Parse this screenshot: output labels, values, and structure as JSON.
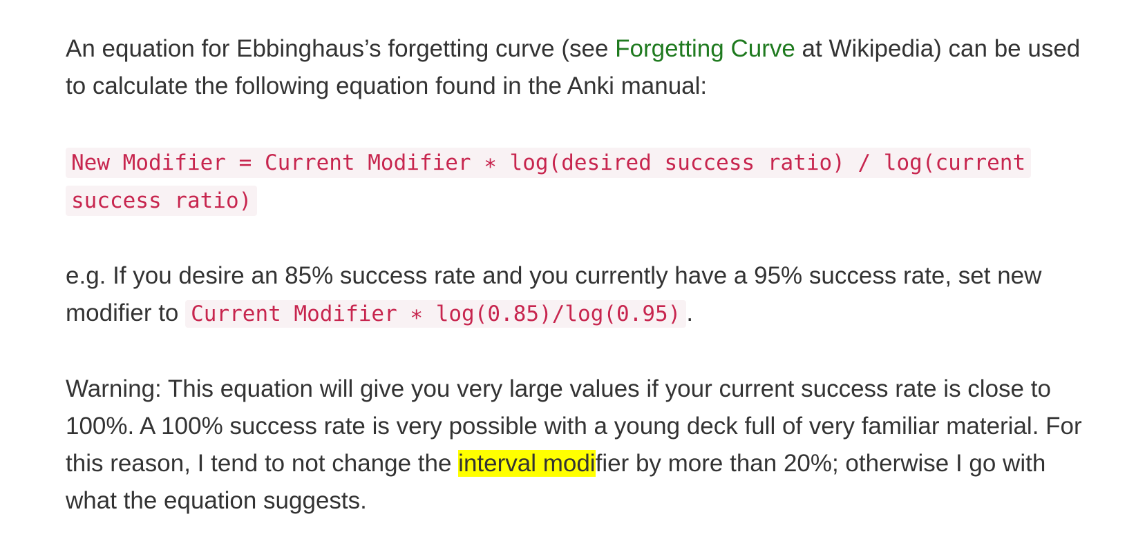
{
  "paragraph1": {
    "before_link": "An equation for Ebbinghaus’s forgetting curve (see ",
    "link_text": "Forgetting Curve",
    "after_link": " at Wikipedia) can be used to calculate the following equation found in the Anki manual:"
  },
  "formula": {
    "text": "New Modifier = Current Modifier ∗ log(desired success ratio) / log(current success ratio)"
  },
  "example": {
    "before_code": "e.g. If you desire an 85% success rate and you currently have a 95% success rate, set new modifier to ",
    "code": "Current Modifier ∗ log(0.85)/log(0.95)",
    "after_code": "."
  },
  "warning": {
    "before_highlight": "Warning: This equation will give you very large values if your current success rate is close to 100%. A 100% success rate is very possible with a young deck full of very familiar material. For this reason, I tend to not change the ",
    "highlight": "interval modi",
    "after_highlight": "fier by more than 20%; otherwise I go with what the equation suggests."
  },
  "colors": {
    "text": "#333333",
    "link": "#1f7a1f",
    "code_text": "#c7254e",
    "code_background": "#f9f2f4",
    "highlight": "#ffff00"
  }
}
